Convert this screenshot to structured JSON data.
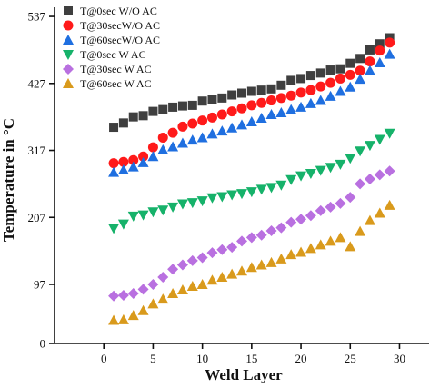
{
  "chart_data": {
    "type": "scatter",
    "xlabel": "Weld Layer",
    "ylabel": "Temperature in °C",
    "xlim": [
      -5,
      33
    ],
    "ylim": [
      0,
      552
    ],
    "xticks": [
      0,
      5,
      10,
      15,
      20,
      25,
      30
    ],
    "yticks": [
      0,
      97,
      207,
      317,
      427,
      537
    ],
    "grid": false,
    "legend_position": "top-left",
    "series": [
      {
        "name": "T@0sec W/O AC",
        "marker": "square",
        "color": "#3f3f3f",
        "x": [
          1,
          2,
          3,
          4,
          5,
          6,
          7,
          8,
          9,
          10,
          11,
          12,
          13,
          14,
          15,
          16,
          17,
          18,
          19,
          20,
          21,
          22,
          23,
          24,
          25,
          26,
          27,
          28,
          29
        ],
        "y": [
          355,
          362,
          372,
          374,
          381,
          384,
          388,
          390,
          391,
          398,
          400,
          403,
          408,
          411,
          414,
          416,
          418,
          424,
          432,
          435,
          440,
          444,
          449,
          451,
          460,
          468,
          482,
          492,
          502
        ]
      },
      {
        "name": "T@30secW/O AC",
        "marker": "circle",
        "color": "#ff1a1a",
        "x": [
          1,
          2,
          3,
          4,
          5,
          6,
          7,
          8,
          9,
          10,
          11,
          12,
          13,
          14,
          15,
          16,
          17,
          18,
          19,
          20,
          21,
          22,
          23,
          24,
          25,
          26,
          27,
          28,
          29
        ],
        "y": [
          296,
          298,
          301,
          307,
          322,
          338,
          346,
          356,
          361,
          366,
          371,
          376,
          381,
          386,
          391,
          395,
          399,
          403,
          407,
          412,
          416,
          422,
          428,
          435,
          441,
          448,
          463,
          481,
          494
        ]
      },
      {
        "name": "T@60secW/O AC",
        "marker": "triangle-up",
        "color": "#1f6fe0",
        "x": [
          1,
          2,
          3,
          4,
          5,
          6,
          7,
          8,
          9,
          10,
          11,
          12,
          13,
          14,
          15,
          16,
          17,
          18,
          19,
          20,
          21,
          22,
          23,
          24,
          25,
          26,
          27,
          28,
          29
        ],
        "y": [
          281,
          285,
          290,
          297,
          307,
          318,
          323,
          329,
          334,
          338,
          344,
          349,
          354,
          359,
          364,
          370,
          376,
          379,
          384,
          388,
          394,
          399,
          406,
          414,
          421,
          434,
          448,
          461,
          475
        ]
      },
      {
        "name": "T@0sec W AC",
        "marker": "triangle-down",
        "color": "#16b26a",
        "x": [
          1,
          2,
          3,
          4,
          5,
          6,
          7,
          8,
          9,
          10,
          11,
          12,
          13,
          14,
          15,
          16,
          17,
          18,
          19,
          20,
          21,
          22,
          23,
          24,
          25,
          26,
          27,
          28,
          29
        ],
        "y": [
          189,
          196,
          209,
          211,
          216,
          219,
          224,
          229,
          231,
          234,
          239,
          241,
          244,
          246,
          249,
          253,
          256,
          260,
          269,
          275,
          279,
          284,
          289,
          294,
          304,
          316,
          325,
          335,
          345
        ]
      },
      {
        "name": "T@30sec W AC",
        "marker": "diamond",
        "color": "#b970e0",
        "x": [
          1,
          2,
          3,
          4,
          5,
          6,
          7,
          8,
          9,
          10,
          11,
          12,
          13,
          14,
          15,
          16,
          17,
          18,
          19,
          20,
          21,
          22,
          23,
          24,
          25,
          26,
          27,
          28,
          29
        ],
        "y": [
          78,
          79,
          82,
          89,
          97,
          109,
          122,
          129,
          136,
          141,
          149,
          154,
          158,
          168,
          174,
          178,
          185,
          190,
          199,
          204,
          210,
          218,
          224,
          230,
          240,
          262,
          270,
          277,
          283
        ]
      },
      {
        "name": "T@60sec W AC",
        "marker": "triangle-up",
        "color": "#d99a1c",
        "x": [
          1,
          2,
          3,
          4,
          5,
          6,
          7,
          8,
          9,
          10,
          11,
          12,
          13,
          14,
          15,
          16,
          17,
          18,
          19,
          20,
          21,
          22,
          23,
          24,
          25,
          26,
          27,
          28,
          29
        ],
        "y": [
          38,
          39,
          46,
          54,
          65,
          73,
          82,
          88,
          94,
          97,
          104,
          109,
          114,
          119,
          125,
          129,
          133,
          139,
          146,
          150,
          156,
          162,
          168,
          174,
          159,
          184,
          202,
          214,
          227
        ]
      }
    ]
  }
}
